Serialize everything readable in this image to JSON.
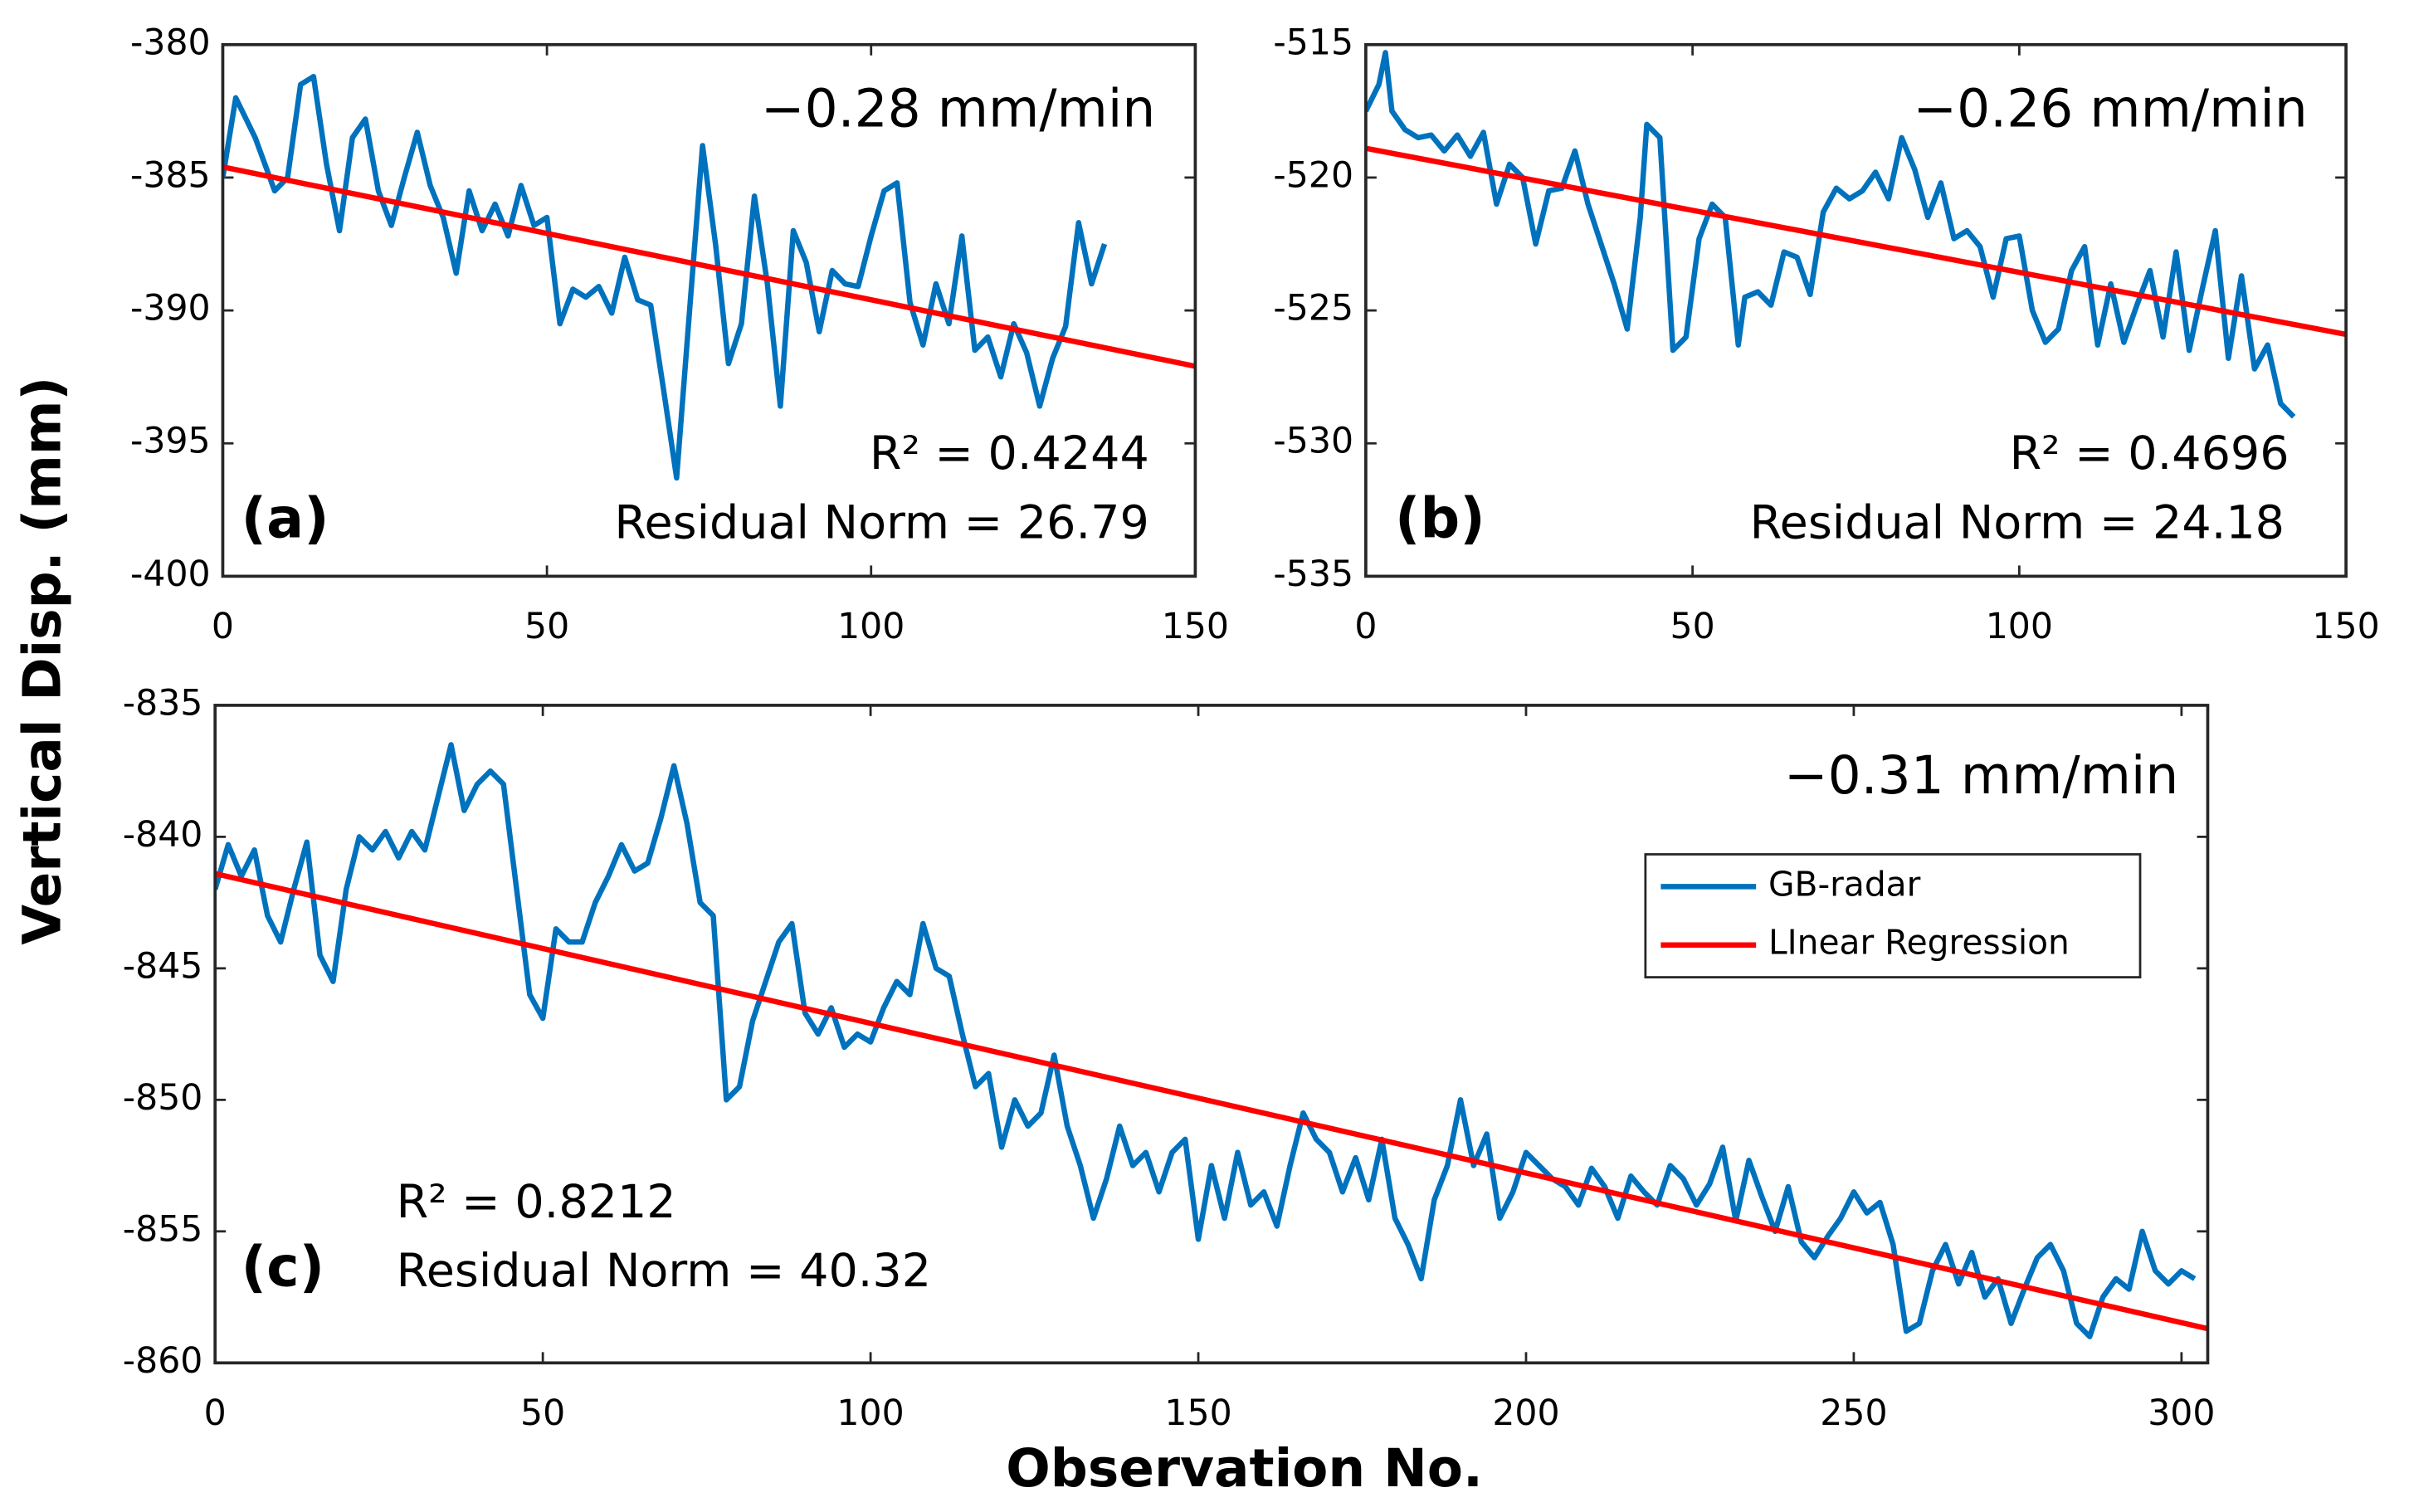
{
  "ylabel": "Vertical Disp. (mm)",
  "xlabel": "Observation No.",
  "chart_data": [
    {
      "type": "line",
      "xlim": [
        0,
        150
      ],
      "xticks": [
        0,
        50,
        100,
        150
      ],
      "ylim": [
        -400,
        -380
      ],
      "yticks": [
        -380,
        -385,
        -390,
        -395,
        -400
      ],
      "annotations": [
        "−0.28 mm/min",
        "R² = 0.4244",
        "Residual Norm = 26.79",
        "(a)"
      ],
      "series": [
        {
          "color": "#0072BD",
          "x": [
            0,
            2,
            5,
            8,
            10,
            12,
            14,
            16,
            18,
            20,
            22,
            24,
            26,
            28,
            30,
            32,
            34,
            36,
            38,
            40,
            42,
            44,
            46,
            48,
            50,
            52,
            54,
            56,
            58,
            60,
            62,
            64,
            66,
            68,
            70,
            72,
            74,
            76,
            78,
            80,
            82,
            84,
            86,
            88,
            90,
            92,
            94,
            96,
            98,
            100,
            102,
            104,
            106,
            108,
            110,
            112,
            114,
            116,
            118,
            120,
            122,
            124,
            126,
            128,
            130,
            132,
            134,
            136
          ],
          "values": [
            -385,
            -382,
            -383.5,
            -385.5,
            -385,
            -381.5,
            -381.2,
            -384.5,
            -387,
            -383.5,
            -382.8,
            -385.5,
            -386.8,
            -385,
            -383.3,
            -385.3,
            -386.5,
            -388.6,
            -385.5,
            -387,
            -386,
            -387.2,
            -385.3,
            -386.8,
            -386.5,
            -390.5,
            -389.2,
            -389.5,
            -389.1,
            -390.1,
            -388,
            -389.6,
            -389.8,
            -393,
            -396.3,
            -390,
            -383.8,
            -387.5,
            -392,
            -390.5,
            -385.7,
            -389,
            -393.6,
            -387,
            -388.2,
            -390.8,
            -388.5,
            -389,
            -389.1,
            -387.2,
            -385.5,
            -385.2,
            -389.7,
            -391.3,
            -389,
            -390.5,
            -387.2,
            -391.5,
            -391,
            -392.5,
            -390.5,
            -391.6,
            -393.6,
            -391.8,
            -390.6,
            -386.7,
            -389,
            -387.5
          ]
        },
        {
          "color": "#FF0000",
          "x": [
            0,
            150
          ],
          "values": [
            -384.6,
            -392.1
          ]
        }
      ]
    },
    {
      "type": "line",
      "xlim": [
        0,
        150
      ],
      "xticks": [
        0,
        50,
        100,
        150
      ],
      "ylim": [
        -535,
        -515
      ],
      "yticks": [
        -515,
        -520,
        -525,
        -530,
        -535
      ],
      "annotations": [
        "−0.26 mm/min",
        "R² = 0.4696",
        "Residual Norm = 24.18",
        "(b)"
      ],
      "series": [
        {
          "color": "#0072BD",
          "x": [
            0,
            2,
            3,
            4,
            6,
            8,
            10,
            12,
            14,
            16,
            18,
            20,
            22,
            24,
            26,
            28,
            30,
            32,
            34,
            36,
            38,
            40,
            42,
            43,
            45,
            47,
            49,
            51,
            53,
            55,
            57,
            58,
            60,
            62,
            64,
            66,
            68,
            70,
            72,
            74,
            76,
            78,
            80,
            82,
            84,
            86,
            88,
            90,
            92,
            94,
            96,
            98,
            100,
            102,
            104,
            106,
            108,
            110,
            112,
            114,
            116,
            118,
            120,
            122,
            124,
            126,
            128,
            130,
            132,
            134,
            136,
            138,
            140,
            142
          ],
          "values": [
            -517.5,
            -516.5,
            -515.3,
            -517.5,
            -518.2,
            -518.5,
            -518.4,
            -519,
            -518.4,
            -519.2,
            -518.3,
            -521,
            -519.5,
            -520,
            -522.5,
            -520.5,
            -520.4,
            -519,
            -521,
            -522.5,
            -524,
            -525.7,
            -521.5,
            -518,
            -518.5,
            -526.5,
            -526,
            -522.3,
            -521,
            -521.5,
            -526.3,
            -524.5,
            -524.3,
            -524.8,
            -522.8,
            -523,
            -524.4,
            -521.3,
            -520.4,
            -520.8,
            -520.5,
            -519.8,
            -520.8,
            -518.5,
            -519.7,
            -521.5,
            -520.2,
            -522.3,
            -522,
            -522.6,
            -524.5,
            -522.3,
            -522.2,
            -525,
            -526.2,
            -525.7,
            -523.5,
            -522.6,
            -526.3,
            -524,
            -526.2,
            -524.8,
            -523.5,
            -526,
            -522.8,
            -526.5,
            -524.2,
            -522,
            -526.8,
            -523.7,
            -527.2,
            -526.3,
            -528.5,
            -529
          ]
        },
        {
          "color": "#FF0000",
          "x": [
            0,
            150
          ],
          "values": [
            -518.9,
            -525.9
          ]
        }
      ]
    },
    {
      "type": "line",
      "xlim": [
        0,
        304
      ],
      "xticks": [
        0,
        50,
        100,
        150,
        200,
        250,
        300
      ],
      "ylim": [
        -860,
        -835
      ],
      "yticks": [
        -835,
        -840,
        -845,
        -850,
        -855,
        -860
      ],
      "annotations": [
        "−0.31 mm/min",
        "R² = 0.8212",
        "Residual Norm = 40.32",
        "(c)"
      ],
      "legend": "upper right",
      "series": [
        {
          "name": "GB-radar",
          "color": "#0072BD",
          "x": [
            0,
            2,
            4,
            6,
            8,
            10,
            12,
            14,
            16,
            18,
            20,
            22,
            24,
            26,
            28,
            30,
            32,
            34,
            36,
            38,
            40,
            42,
            44,
            46,
            48,
            50,
            52,
            54,
            56,
            58,
            60,
            62,
            64,
            66,
            68,
            70,
            72,
            74,
            76,
            78,
            80,
            82,
            84,
            86,
            88,
            90,
            92,
            94,
            96,
            98,
            100,
            102,
            104,
            106,
            108,
            110,
            112,
            114,
            116,
            118,
            120,
            122,
            124,
            126,
            128,
            130,
            132,
            134,
            136,
            138,
            140,
            142,
            144,
            146,
            148,
            150,
            152,
            154,
            156,
            158,
            160,
            162,
            164,
            166,
            168,
            170,
            172,
            174,
            176,
            178,
            180,
            182,
            184,
            186,
            188,
            190,
            192,
            194,
            196,
            198,
            200,
            202,
            204,
            206,
            208,
            210,
            212,
            214,
            216,
            218,
            220,
            222,
            224,
            226,
            228,
            230,
            232,
            234,
            236,
            238,
            240,
            242,
            244,
            246,
            248,
            250,
            252,
            254,
            256,
            258,
            260,
            262,
            264,
            266,
            268,
            270,
            272,
            274,
            276,
            278,
            280,
            282,
            284,
            286,
            288,
            290,
            292,
            294,
            296,
            298,
            300,
            302
          ],
          "values": [
            -842,
            -840.3,
            -841.5,
            -840.5,
            -843,
            -844,
            -842,
            -840.2,
            -844.5,
            -845.5,
            -842,
            -840,
            -840.5,
            -839.8,
            -840.8,
            -839.8,
            -840.5,
            -838.5,
            -836.5,
            -839,
            -838,
            -837.5,
            -838,
            -842,
            -846,
            -846.9,
            -843.5,
            -844,
            -844,
            -842.5,
            -841.5,
            -840.3,
            -841.3,
            -841,
            -839.3,
            -837.3,
            -839.5,
            -842.5,
            -843,
            -850,
            -849.5,
            -847,
            -845.5,
            -844,
            -843.3,
            -846.7,
            -847.5,
            -846.5,
            -848,
            -847.5,
            -847.8,
            -846.5,
            -845.5,
            -846,
            -843.3,
            -845,
            -845.3,
            -847.5,
            -849.5,
            -849,
            -851.8,
            -850,
            -851,
            -850.5,
            -848.3,
            -851,
            -852.5,
            -854.5,
            -853,
            -851,
            -852.5,
            -852,
            -853.5,
            -852,
            -851.5,
            -855.3,
            -852.5,
            -854.5,
            -852,
            -854,
            -853.5,
            -854.8,
            -852.5,
            -850.5,
            -851.5,
            -852,
            -853.5,
            -852.2,
            -853.8,
            -851.5,
            -854.5,
            -855.5,
            -856.8,
            -853.8,
            -852.5,
            -850,
            -852.5,
            -851.3,
            -854.5,
            -853.5,
            -852,
            -852.5,
            -853,
            -853.3,
            -854,
            -852.6,
            -853.3,
            -854.5,
            -852.9,
            -853.5,
            -854,
            -852.5,
            -853,
            -854,
            -853.2,
            -851.8,
            -854.6,
            -852.3,
            -853.7,
            -855,
            -853.3,
            -855.4,
            -856,
            -855.2,
            -854.5,
            -853.5,
            -854.3,
            -853.9,
            -855.5,
            -858.8,
            -858.5,
            -856.5,
            -855.5,
            -857,
            -855.8,
            -857.5,
            -856.8,
            -858.5,
            -857.2,
            -856,
            -855.5,
            -856.5,
            -858.5,
            -859,
            -857.5,
            -856.8,
            -857.2,
            -855,
            -856.5,
            -857,
            -856.5,
            -856.8
          ]
        },
        {
          "name": "LInear Regression",
          "color": "#FF0000",
          "x": [
            0,
            304
          ],
          "values": [
            -841.4,
            -858.7
          ]
        }
      ]
    }
  ]
}
